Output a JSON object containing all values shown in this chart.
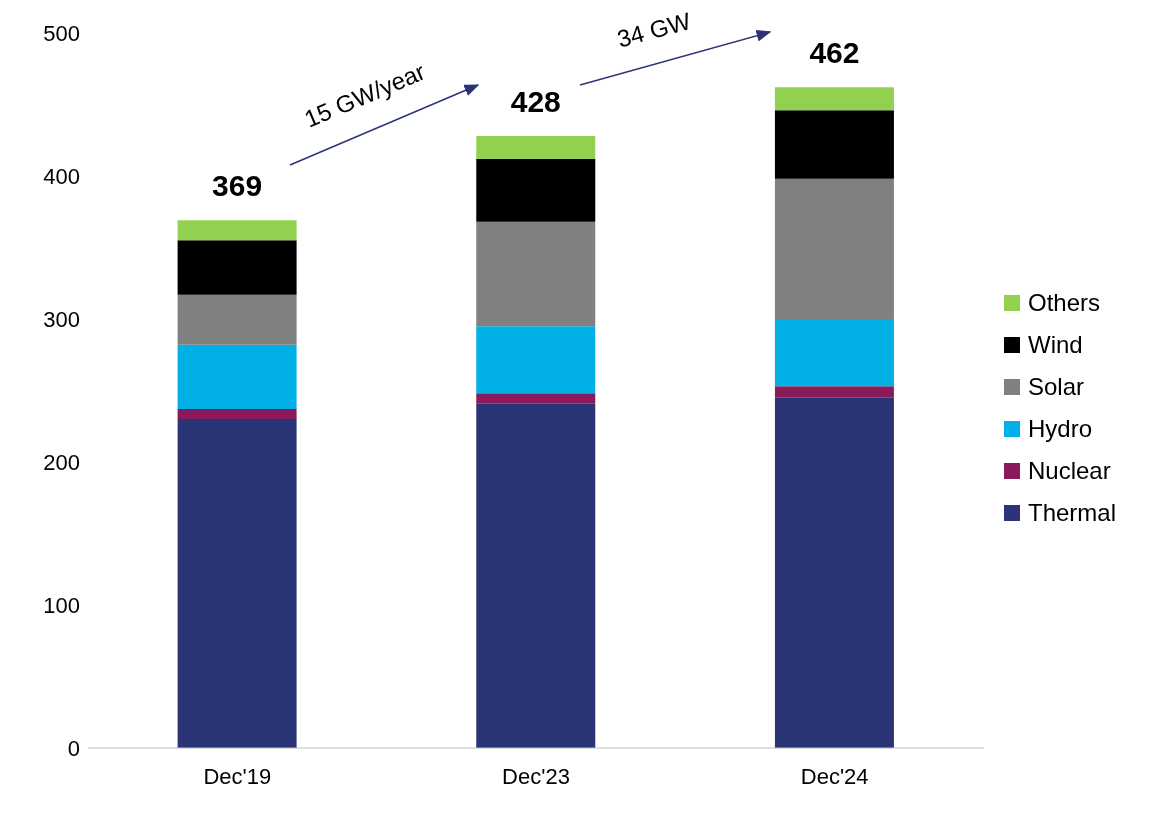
{
  "chart_data": {
    "type": "bar",
    "stacked": true,
    "categories": [
      "Dec'19",
      "Dec'23",
      "Dec'24"
    ],
    "series": [
      {
        "name": "Thermal",
        "color": "#2b3475",
        "values": [
          230,
          241,
          245
        ]
      },
      {
        "name": "Nuclear",
        "color": "#8b1a5a",
        "values": [
          7,
          7,
          8
        ]
      },
      {
        "name": "Hydro",
        "color": "#00b0e6",
        "values": [
          45,
          47,
          47
        ]
      },
      {
        "name": "Solar",
        "color": "#808080",
        "values": [
          35,
          73,
          98
        ]
      },
      {
        "name": "Wind",
        "color": "#000000",
        "values": [
          38,
          44,
          48
        ]
      },
      {
        "name": "Others",
        "color": "#92d050",
        "values": [
          14,
          16,
          16
        ]
      }
    ],
    "totals": [
      "369",
      "428",
      "462"
    ],
    "annotations": [
      "15 GW/year",
      "34 GW"
    ],
    "ylim": [
      0,
      500
    ],
    "yticks": [
      0,
      100,
      200,
      300,
      400,
      500
    ],
    "grid": false,
    "legend": "right"
  }
}
